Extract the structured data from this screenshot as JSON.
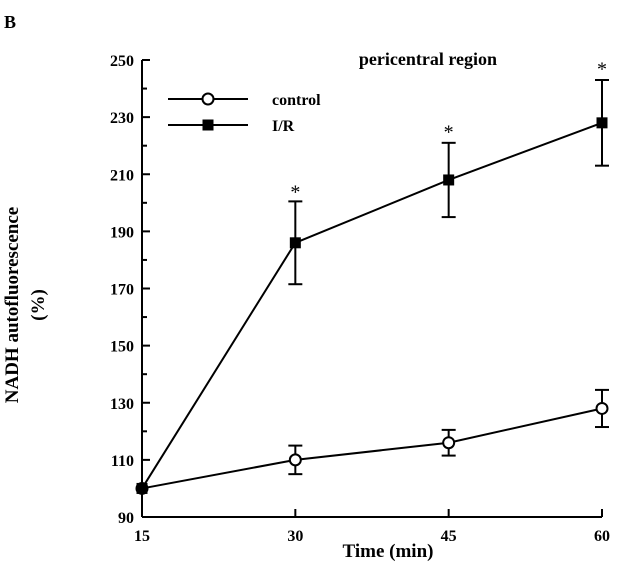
{
  "panel_label": "B",
  "chart_data": {
    "type": "line",
    "title": "pericentral region",
    "xlabel": "Time (min)",
    "ylabel": "NADH autofluorescence",
    "ylabel_unit": "(%)",
    "x": [
      15,
      30,
      45,
      60
    ],
    "xlim": [
      15,
      60
    ],
    "ylim": [
      90,
      250
    ],
    "xticks": [
      "15",
      "30",
      "45",
      "60"
    ],
    "yticks": [
      "90",
      "110",
      "130",
      "150",
      "170",
      "190",
      "210",
      "230",
      "250"
    ],
    "grid": false,
    "legend_position": "top-left",
    "series": [
      {
        "name": "control",
        "marker": "open-circle",
        "values": [
          100,
          110,
          116,
          128
        ],
        "errors": [
          0,
          5,
          4.5,
          6.5
        ]
      },
      {
        "name": "I/R",
        "marker": "filled-square",
        "values": [
          100,
          186,
          208,
          228
        ],
        "errors": [
          0,
          14.5,
          13,
          15
        ]
      }
    ],
    "annotations": [
      {
        "text": "*",
        "x": 30,
        "y": 204
      },
      {
        "text": "*",
        "x": 45,
        "y": 225
      },
      {
        "text": "*",
        "x": 60,
        "y": 247
      }
    ]
  }
}
